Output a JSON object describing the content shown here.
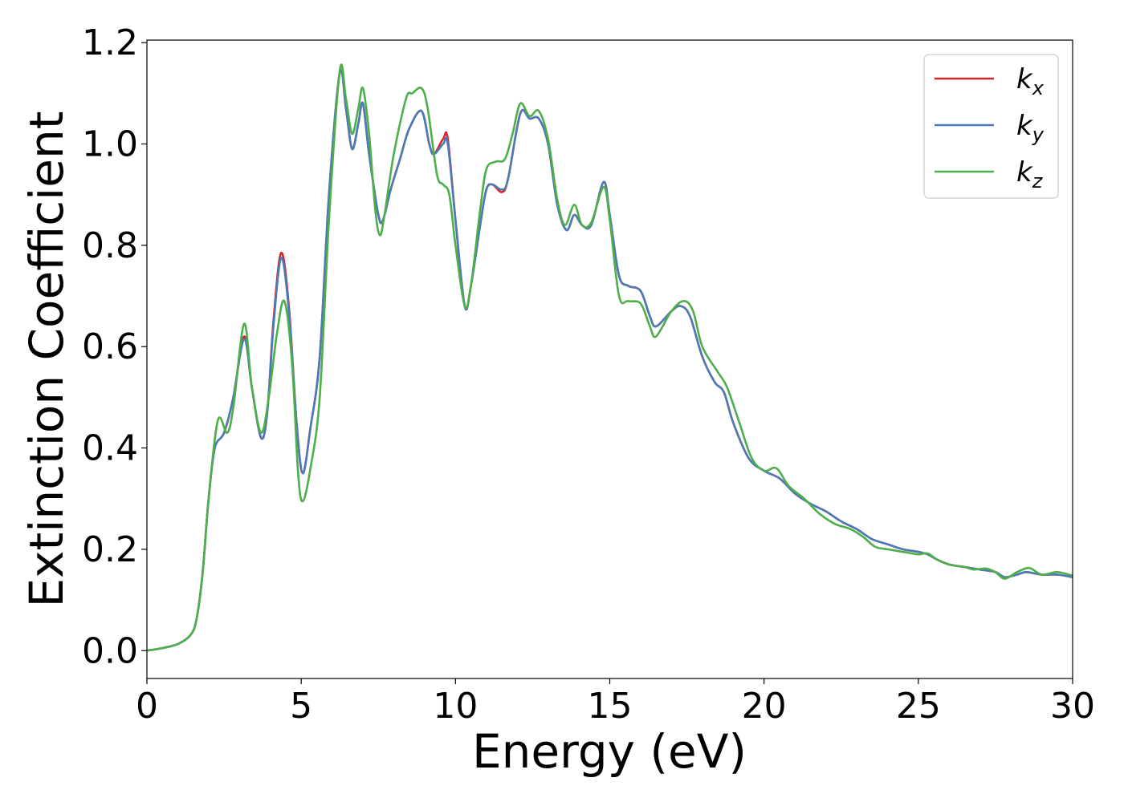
{
  "chart_data": {
    "type": "line",
    "title": "",
    "xlabel": "Energy (eV)",
    "ylabel": "Extinction Coefficient",
    "xlim": [
      0,
      30
    ],
    "ylim": [
      -0.055,
      1.205
    ],
    "xticks": [
      0,
      5,
      10,
      15,
      20,
      25,
      30
    ],
    "yticks": [
      0.0,
      0.2,
      0.4,
      0.6,
      0.8,
      1.0,
      1.2
    ],
    "xtick_labels": [
      "0",
      "5",
      "10",
      "15",
      "20",
      "25",
      "30"
    ],
    "ytick_labels": [
      "0.0",
      "0.2",
      "0.4",
      "0.6",
      "0.8",
      "1.0",
      "1.2"
    ],
    "grid": false,
    "legend_position": "top-right",
    "series": [
      {
        "name": "k_x",
        "color": "#d62728",
        "points": [
          [
            0,
            0.0
          ],
          [
            0.5,
            0.005
          ],
          [
            1.0,
            0.013
          ],
          [
            1.4,
            0.03
          ],
          [
            1.6,
            0.06
          ],
          [
            1.8,
            0.15
          ],
          [
            2.0,
            0.3
          ],
          [
            2.2,
            0.4
          ],
          [
            2.5,
            0.43
          ],
          [
            2.8,
            0.5
          ],
          [
            3.15,
            0.62
          ],
          [
            3.4,
            0.52
          ],
          [
            3.7,
            0.42
          ],
          [
            3.9,
            0.47
          ],
          [
            4.1,
            0.65
          ],
          [
            4.35,
            0.785
          ],
          [
            4.6,
            0.68
          ],
          [
            4.85,
            0.45
          ],
          [
            5.05,
            0.35
          ],
          [
            5.3,
            0.44
          ],
          [
            5.6,
            0.58
          ],
          [
            5.9,
            0.9
          ],
          [
            6.25,
            1.14
          ],
          [
            6.45,
            1.07
          ],
          [
            6.65,
            0.99
          ],
          [
            6.85,
            1.04
          ],
          [
            7.0,
            1.08
          ],
          [
            7.2,
            0.98
          ],
          [
            7.5,
            0.86
          ],
          [
            7.65,
            0.85
          ],
          [
            7.9,
            0.91
          ],
          [
            8.2,
            0.97
          ],
          [
            8.5,
            1.03
          ],
          [
            8.9,
            1.065
          ],
          [
            9.15,
            1.0
          ],
          [
            9.3,
            0.98
          ],
          [
            9.6,
            1.01
          ],
          [
            9.75,
            1.01
          ],
          [
            10.0,
            0.85
          ],
          [
            10.3,
            0.68
          ],
          [
            10.5,
            0.72
          ],
          [
            10.8,
            0.84
          ],
          [
            11.0,
            0.91
          ],
          [
            11.2,
            0.92
          ],
          [
            11.5,
            0.905
          ],
          [
            11.7,
            0.93
          ],
          [
            12.1,
            1.06
          ],
          [
            12.4,
            1.05
          ],
          [
            12.7,
            1.05
          ],
          [
            13.0,
            1.0
          ],
          [
            13.3,
            0.88
          ],
          [
            13.6,
            0.83
          ],
          [
            13.85,
            0.86
          ],
          [
            14.1,
            0.84
          ],
          [
            14.4,
            0.84
          ],
          [
            14.8,
            0.925
          ],
          [
            15.0,
            0.86
          ],
          [
            15.3,
            0.74
          ],
          [
            15.6,
            0.72
          ],
          [
            16.0,
            0.71
          ],
          [
            16.3,
            0.66
          ],
          [
            16.5,
            0.64
          ],
          [
            17.0,
            0.67
          ],
          [
            17.3,
            0.68
          ],
          [
            17.6,
            0.66
          ],
          [
            18.0,
            0.58
          ],
          [
            18.4,
            0.53
          ],
          [
            18.7,
            0.51
          ],
          [
            19.0,
            0.45
          ],
          [
            19.5,
            0.38
          ],
          [
            20.0,
            0.355
          ],
          [
            20.5,
            0.34
          ],
          [
            21.0,
            0.31
          ],
          [
            21.5,
            0.29
          ],
          [
            22.0,
            0.275
          ],
          [
            22.5,
            0.255
          ],
          [
            23.0,
            0.24
          ],
          [
            23.5,
            0.22
          ],
          [
            24.0,
            0.21
          ],
          [
            24.5,
            0.2
          ],
          [
            25.0,
            0.195
          ],
          [
            25.3,
            0.19
          ],
          [
            25.6,
            0.18
          ],
          [
            26.0,
            0.17
          ],
          [
            26.5,
            0.165
          ],
          [
            27.0,
            0.16
          ],
          [
            27.5,
            0.155
          ],
          [
            27.8,
            0.145
          ],
          [
            28.2,
            0.15
          ],
          [
            28.5,
            0.155
          ],
          [
            29.0,
            0.15
          ],
          [
            29.5,
            0.15
          ],
          [
            30.0,
            0.145
          ]
        ]
      },
      {
        "name": "k_y",
        "color": "#4a7bb7",
        "points": [
          [
            0,
            0.0
          ],
          [
            0.5,
            0.005
          ],
          [
            1.0,
            0.013
          ],
          [
            1.4,
            0.03
          ],
          [
            1.6,
            0.06
          ],
          [
            1.8,
            0.15
          ],
          [
            2.0,
            0.3
          ],
          [
            2.2,
            0.4
          ],
          [
            2.5,
            0.43
          ],
          [
            2.8,
            0.5
          ],
          [
            3.15,
            0.615
          ],
          [
            3.4,
            0.52
          ],
          [
            3.7,
            0.42
          ],
          [
            3.9,
            0.47
          ],
          [
            4.1,
            0.64
          ],
          [
            4.35,
            0.775
          ],
          [
            4.6,
            0.67
          ],
          [
            4.85,
            0.45
          ],
          [
            5.05,
            0.35
          ],
          [
            5.3,
            0.44
          ],
          [
            5.6,
            0.58
          ],
          [
            5.9,
            0.9
          ],
          [
            6.25,
            1.14
          ],
          [
            6.45,
            1.07
          ],
          [
            6.65,
            0.99
          ],
          [
            6.85,
            1.04
          ],
          [
            7.0,
            1.08
          ],
          [
            7.2,
            0.98
          ],
          [
            7.5,
            0.86
          ],
          [
            7.65,
            0.85
          ],
          [
            7.9,
            0.91
          ],
          [
            8.2,
            0.97
          ],
          [
            8.5,
            1.03
          ],
          [
            8.9,
            1.065
          ],
          [
            9.15,
            1.0
          ],
          [
            9.3,
            0.98
          ],
          [
            9.6,
            1.0
          ],
          [
            9.75,
            1.0
          ],
          [
            10.0,
            0.85
          ],
          [
            10.3,
            0.68
          ],
          [
            10.5,
            0.72
          ],
          [
            10.8,
            0.84
          ],
          [
            11.0,
            0.91
          ],
          [
            11.2,
            0.92
          ],
          [
            11.5,
            0.91
          ],
          [
            11.7,
            0.93
          ],
          [
            12.1,
            1.06
          ],
          [
            12.4,
            1.05
          ],
          [
            12.7,
            1.05
          ],
          [
            13.0,
            1.0
          ],
          [
            13.3,
            0.88
          ],
          [
            13.6,
            0.83
          ],
          [
            13.85,
            0.86
          ],
          [
            14.1,
            0.84
          ],
          [
            14.4,
            0.84
          ],
          [
            14.8,
            0.925
          ],
          [
            15.0,
            0.86
          ],
          [
            15.3,
            0.74
          ],
          [
            15.6,
            0.72
          ],
          [
            16.0,
            0.71
          ],
          [
            16.3,
            0.66
          ],
          [
            16.5,
            0.64
          ],
          [
            17.0,
            0.67
          ],
          [
            17.3,
            0.68
          ],
          [
            17.6,
            0.66
          ],
          [
            18.0,
            0.58
          ],
          [
            18.4,
            0.53
          ],
          [
            18.7,
            0.51
          ],
          [
            19.0,
            0.45
          ],
          [
            19.5,
            0.38
          ],
          [
            20.0,
            0.355
          ],
          [
            20.5,
            0.34
          ],
          [
            21.0,
            0.31
          ],
          [
            21.5,
            0.29
          ],
          [
            22.0,
            0.275
          ],
          [
            22.5,
            0.255
          ],
          [
            23.0,
            0.24
          ],
          [
            23.5,
            0.22
          ],
          [
            24.0,
            0.21
          ],
          [
            24.5,
            0.2
          ],
          [
            25.0,
            0.195
          ],
          [
            25.3,
            0.19
          ],
          [
            25.6,
            0.18
          ],
          [
            26.0,
            0.17
          ],
          [
            26.5,
            0.165
          ],
          [
            27.0,
            0.16
          ],
          [
            27.5,
            0.155
          ],
          [
            27.8,
            0.145
          ],
          [
            28.2,
            0.15
          ],
          [
            28.5,
            0.155
          ],
          [
            29.0,
            0.15
          ],
          [
            29.5,
            0.15
          ],
          [
            30.0,
            0.145
          ]
        ]
      },
      {
        "name": "k_z",
        "color": "#4daf4a",
        "points": [
          [
            0,
            0.0
          ],
          [
            0.5,
            0.005
          ],
          [
            1.0,
            0.013
          ],
          [
            1.4,
            0.03
          ],
          [
            1.6,
            0.06
          ],
          [
            1.8,
            0.15
          ],
          [
            2.0,
            0.3
          ],
          [
            2.3,
            0.455
          ],
          [
            2.6,
            0.43
          ],
          [
            2.8,
            0.48
          ],
          [
            3.15,
            0.645
          ],
          [
            3.4,
            0.52
          ],
          [
            3.7,
            0.43
          ],
          [
            3.95,
            0.5
          ],
          [
            4.2,
            0.62
          ],
          [
            4.45,
            0.69
          ],
          [
            4.7,
            0.57
          ],
          [
            4.9,
            0.35
          ],
          [
            5.05,
            0.295
          ],
          [
            5.3,
            0.36
          ],
          [
            5.6,
            0.5
          ],
          [
            5.9,
            0.85
          ],
          [
            6.25,
            1.145
          ],
          [
            6.45,
            1.09
          ],
          [
            6.65,
            1.02
          ],
          [
            6.85,
            1.07
          ],
          [
            7.0,
            1.11
          ],
          [
            7.2,
            1.02
          ],
          [
            7.4,
            0.87
          ],
          [
            7.55,
            0.82
          ],
          [
            7.7,
            0.86
          ],
          [
            8.0,
            0.98
          ],
          [
            8.4,
            1.09
          ],
          [
            8.6,
            1.1
          ],
          [
            8.9,
            1.11
          ],
          [
            9.1,
            1.07
          ],
          [
            9.4,
            0.94
          ],
          [
            9.6,
            0.92
          ],
          [
            9.8,
            0.9
          ],
          [
            10.0,
            0.8
          ],
          [
            10.3,
            0.68
          ],
          [
            10.5,
            0.72
          ],
          [
            10.8,
            0.87
          ],
          [
            11.0,
            0.95
          ],
          [
            11.3,
            0.965
          ],
          [
            11.6,
            0.97
          ],
          [
            11.85,
            1.02
          ],
          [
            12.1,
            1.08
          ],
          [
            12.4,
            1.055
          ],
          [
            12.7,
            1.065
          ],
          [
            13.0,
            1.01
          ],
          [
            13.3,
            0.89
          ],
          [
            13.55,
            0.84
          ],
          [
            13.85,
            0.88
          ],
          [
            14.1,
            0.84
          ],
          [
            14.4,
            0.845
          ],
          [
            14.8,
            0.915
          ],
          [
            15.0,
            0.85
          ],
          [
            15.3,
            0.7
          ],
          [
            15.6,
            0.69
          ],
          [
            16.0,
            0.685
          ],
          [
            16.3,
            0.64
          ],
          [
            16.5,
            0.62
          ],
          [
            17.0,
            0.67
          ],
          [
            17.4,
            0.69
          ],
          [
            17.7,
            0.67
          ],
          [
            18.0,
            0.6
          ],
          [
            18.5,
            0.55
          ],
          [
            18.8,
            0.52
          ],
          [
            19.2,
            0.45
          ],
          [
            19.6,
            0.38
          ],
          [
            20.0,
            0.355
          ],
          [
            20.4,
            0.36
          ],
          [
            20.8,
            0.325
          ],
          [
            21.3,
            0.3
          ],
          [
            21.8,
            0.27
          ],
          [
            22.3,
            0.25
          ],
          [
            22.8,
            0.24
          ],
          [
            23.2,
            0.225
          ],
          [
            23.6,
            0.205
          ],
          [
            24.0,
            0.2
          ],
          [
            24.5,
            0.195
          ],
          [
            25.0,
            0.19
          ],
          [
            25.3,
            0.192
          ],
          [
            25.6,
            0.18
          ],
          [
            26.0,
            0.17
          ],
          [
            26.5,
            0.165
          ],
          [
            26.8,
            0.16
          ],
          [
            27.2,
            0.162
          ],
          [
            27.5,
            0.155
          ],
          [
            27.8,
            0.142
          ],
          [
            28.2,
            0.155
          ],
          [
            28.6,
            0.163
          ],
          [
            29.0,
            0.15
          ],
          [
            29.5,
            0.155
          ],
          [
            30.0,
            0.148
          ]
        ]
      }
    ]
  }
}
